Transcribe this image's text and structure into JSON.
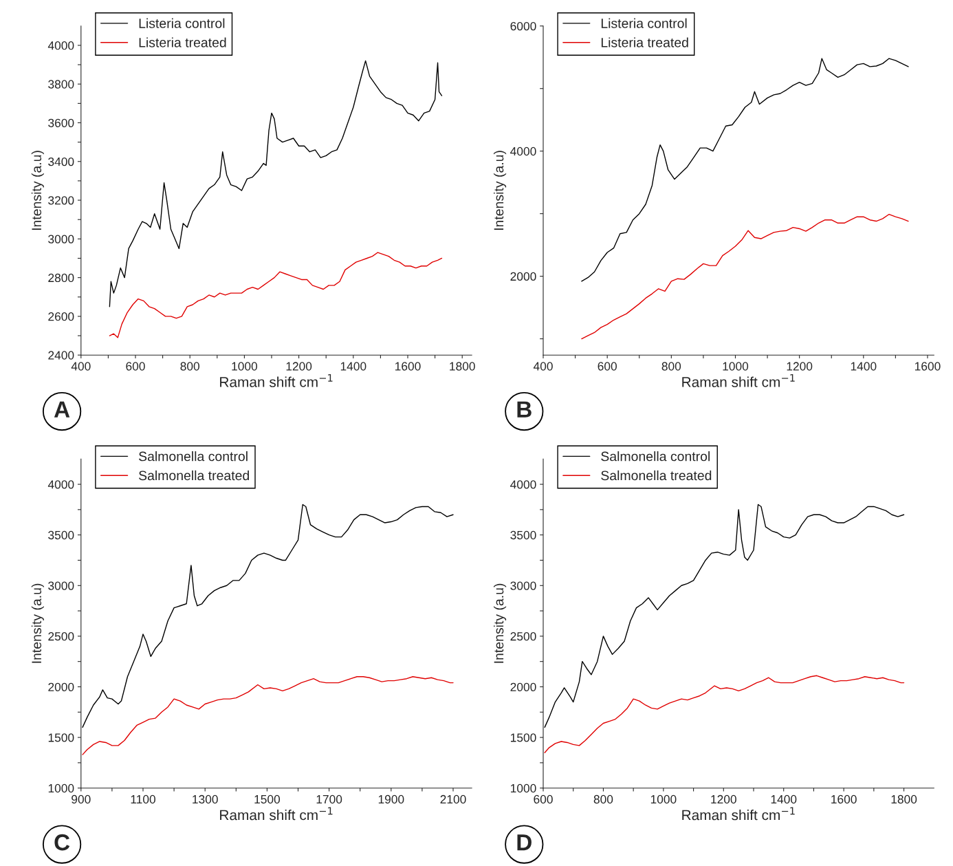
{
  "chart_data": [
    {
      "type": "line",
      "xlabel": "Raman shift cm$^{−1}$",
      "ylabel": "Intensity (a.u)",
      "annotations": [
        "A"
      ],
      "legend": "top left",
      "grid": false,
      "xlim": [
        400,
        1835
      ],
      "ylim": [
        2400,
        4100
      ],
      "xticks": [
        400,
        {
          "value": 500,
          "label": null
        },
        600,
        {
          "value": 700,
          "label": null
        },
        800,
        {
          "value": 900,
          "label": null
        },
        1000,
        {
          "value": 1100,
          "label": null
        },
        1200,
        {
          "value": 1300,
          "label": null
        },
        1400,
        {
          "value": 1500,
          "label": null
        },
        1600,
        {
          "value": 1700,
          "label": null
        },
        1800
      ],
      "yticks": [
        2400,
        {
          "value": 2500,
          "label": null
        },
        2600,
        {
          "value": 2700,
          "label": null
        },
        2800,
        {
          "value": 2900,
          "label": null
        },
        3000,
        {
          "value": 3100,
          "label": null
        },
        3200,
        {
          "value": 3300,
          "label": null
        },
        3400,
        {
          "value": 3500,
          "label": null
        },
        3600,
        {
          "value": 3700,
          "label": null
        },
        3800,
        {
          "value": 3900,
          "label": null
        },
        4000
      ],
      "series": [
        {
          "name": "Listeria control",
          "color": "#000000",
          "x": [
            505,
            510,
            520,
            530,
            545,
            560,
            575,
            590,
            610,
            625,
            640,
            655,
            670,
            690,
            705,
            715,
            730,
            745,
            760,
            775,
            790,
            810,
            830,
            850,
            870,
            890,
            910,
            920,
            935,
            950,
            970,
            990,
            1010,
            1030,
            1050,
            1070,
            1080,
            1090,
            1100,
            1110,
            1120,
            1140,
            1160,
            1180,
            1200,
            1220,
            1240,
            1260,
            1280,
            1300,
            1320,
            1340,
            1360,
            1380,
            1400,
            1420,
            1435,
            1445,
            1460,
            1480,
            1500,
            1520,
            1540,
            1560,
            1580,
            1600,
            1620,
            1640,
            1660,
            1680,
            1700,
            1710,
            1715,
            1725
          ],
          "values": [
            2650,
            2780,
            2720,
            2760,
            2850,
            2800,
            2950,
            2990,
            3050,
            3090,
            3080,
            3060,
            3130,
            3050,
            3290,
            3200,
            3050,
            3000,
            2950,
            3080,
            3060,
            3140,
            3180,
            3220,
            3260,
            3280,
            3320,
            3450,
            3330,
            3280,
            3270,
            3250,
            3310,
            3320,
            3350,
            3390,
            3380,
            3560,
            3650,
            3620,
            3520,
            3500,
            3510,
            3520,
            3480,
            3480,
            3450,
            3460,
            3420,
            3430,
            3450,
            3460,
            3520,
            3600,
            3680,
            3790,
            3870,
            3920,
            3840,
            3800,
            3760,
            3730,
            3720,
            3700,
            3690,
            3650,
            3640,
            3610,
            3650,
            3660,
            3720,
            3910,
            3760,
            3740
          ]
        },
        {
          "name": "Listeria treated",
          "color": "#e00000",
          "x": [
            505,
            520,
            535,
            550,
            570,
            590,
            610,
            630,
            650,
            670,
            690,
            710,
            730,
            750,
            770,
            790,
            810,
            830,
            850,
            870,
            890,
            910,
            930,
            950,
            970,
            990,
            1010,
            1030,
            1050,
            1070,
            1090,
            1110,
            1130,
            1150,
            1170,
            1190,
            1210,
            1230,
            1250,
            1270,
            1290,
            1310,
            1330,
            1350,
            1370,
            1390,
            1410,
            1430,
            1450,
            1470,
            1490,
            1510,
            1530,
            1550,
            1570,
            1590,
            1610,
            1630,
            1650,
            1670,
            1690,
            1710,
            1725
          ],
          "values": [
            2500,
            2510,
            2490,
            2560,
            2620,
            2660,
            2690,
            2680,
            2650,
            2640,
            2620,
            2600,
            2600,
            2590,
            2600,
            2650,
            2660,
            2680,
            2690,
            2710,
            2700,
            2720,
            2710,
            2720,
            2720,
            2720,
            2740,
            2750,
            2740,
            2760,
            2780,
            2800,
            2830,
            2820,
            2810,
            2800,
            2790,
            2790,
            2760,
            2750,
            2740,
            2760,
            2760,
            2780,
            2840,
            2860,
            2880,
            2890,
            2900,
            2910,
            2930,
            2920,
            2910,
            2890,
            2880,
            2860,
            2860,
            2850,
            2860,
            2860,
            2880,
            2890,
            2900
          ]
        }
      ]
    },
    {
      "type": "line",
      "xlabel": "Raman shift cm$^{−1}$",
      "ylabel": "Intensity (a.u)",
      "annotations": [
        "B"
      ],
      "legend": "top left",
      "grid": false,
      "xlim": [
        400,
        1620
      ],
      "ylim": [
        740,
        6000
      ],
      "xticks": [
        400,
        {
          "value": 500,
          "label": null
        },
        600,
        {
          "value": 700,
          "label": null
        },
        800,
        {
          "value": 900,
          "label": null
        },
        1000,
        {
          "value": 1100,
          "label": null
        },
        1200,
        {
          "value": 1300,
          "label": null
        },
        1400,
        {
          "value": 1500,
          "label": null
        },
        1600
      ],
      "yticks": [
        {
          "value": 1000,
          "label": null
        },
        2000,
        {
          "value": 3000,
          "label": null
        },
        4000,
        {
          "value": 5000,
          "label": null
        },
        6000
      ],
      "series": [
        {
          "name": "Listeria control",
          "color": "#000000",
          "x": [
            520,
            540,
            560,
            580,
            600,
            620,
            640,
            660,
            680,
            700,
            720,
            740,
            755,
            765,
            775,
            790,
            810,
            830,
            850,
            870,
            890,
            910,
            930,
            950,
            970,
            990,
            1010,
            1030,
            1050,
            1060,
            1075,
            1100,
            1120,
            1140,
            1160,
            1180,
            1200,
            1220,
            1240,
            1260,
            1270,
            1285,
            1300,
            1320,
            1340,
            1360,
            1380,
            1400,
            1420,
            1440,
            1460,
            1480,
            1500,
            1520,
            1540
          ],
          "values": [
            1920,
            1980,
            2070,
            2250,
            2380,
            2450,
            2680,
            2700,
            2900,
            3000,
            3150,
            3450,
            3900,
            4100,
            4000,
            3700,
            3550,
            3650,
            3750,
            3900,
            4050,
            4050,
            4000,
            4200,
            4400,
            4420,
            4550,
            4700,
            4780,
            4950,
            4750,
            4850,
            4900,
            4920,
            4980,
            5050,
            5100,
            5050,
            5080,
            5250,
            5480,
            5300,
            5250,
            5180,
            5220,
            5300,
            5380,
            5400,
            5350,
            5360,
            5400,
            5480,
            5450,
            5400,
            5350
          ]
        },
        {
          "name": "Listeria treated",
          "color": "#e00000",
          "x": [
            520,
            540,
            560,
            580,
            600,
            620,
            640,
            660,
            680,
            700,
            720,
            740,
            760,
            780,
            800,
            820,
            840,
            860,
            880,
            900,
            920,
            940,
            960,
            980,
            1000,
            1020,
            1040,
            1060,
            1080,
            1100,
            1120,
            1140,
            1160,
            1180,
            1200,
            1220,
            1240,
            1260,
            1280,
            1300,
            1320,
            1340,
            1360,
            1380,
            1400,
            1420,
            1440,
            1460,
            1480,
            1500,
            1520,
            1540
          ],
          "values": [
            1000,
            1050,
            1100,
            1180,
            1230,
            1300,
            1350,
            1400,
            1480,
            1560,
            1650,
            1720,
            1800,
            1760,
            1920,
            1960,
            1950,
            2030,
            2120,
            2200,
            2170,
            2170,
            2330,
            2400,
            2480,
            2580,
            2730,
            2620,
            2600,
            2650,
            2700,
            2720,
            2730,
            2780,
            2760,
            2720,
            2780,
            2850,
            2900,
            2900,
            2850,
            2850,
            2900,
            2950,
            2950,
            2900,
            2880,
            2920,
            2990,
            2950,
            2920,
            2880
          ]
        }
      ]
    },
    {
      "type": "line",
      "xlabel": "Raman shift cm$^{−1}$",
      "ylabel": "Intensity (a.u)",
      "annotations": [
        "C"
      ],
      "legend": "top left",
      "grid": false,
      "xlim": [
        900,
        2160
      ],
      "ylim": [
        1000,
        4250
      ],
      "xticks": [
        900,
        {
          "value": 1000,
          "label": null
        },
        1100,
        {
          "value": 1200,
          "label": null
        },
        1300,
        {
          "value": 1400,
          "label": null
        },
        1500,
        {
          "value": 1600,
          "label": null
        },
        1700,
        {
          "value": 1800,
          "label": null
        },
        1900,
        {
          "value": 2000,
          "label": null
        },
        2100
      ],
      "yticks": [
        1000,
        {
          "value": 1250,
          "label": null
        },
        1500,
        {
          "value": 1750,
          "label": null
        },
        2000,
        {
          "value": 2250,
          "label": null
        },
        2500,
        {
          "value": 2750,
          "label": null
        },
        3000,
        {
          "value": 3250,
          "label": null
        },
        3500,
        {
          "value": 3750,
          "label": null
        },
        4000
      ],
      "series": [
        {
          "name": "Salmonella control",
          "color": "#000000",
          "x": [
            905,
            920,
            940,
            960,
            970,
            985,
            1000,
            1020,
            1030,
            1050,
            1070,
            1090,
            1100,
            1110,
            1125,
            1140,
            1160,
            1180,
            1200,
            1220,
            1240,
            1255,
            1265,
            1275,
            1290,
            1310,
            1330,
            1350,
            1370,
            1390,
            1410,
            1430,
            1450,
            1470,
            1490,
            1510,
            1530,
            1550,
            1560,
            1580,
            1600,
            1615,
            1625,
            1640,
            1660,
            1680,
            1700,
            1720,
            1740,
            1760,
            1780,
            1800,
            1820,
            1840,
            1860,
            1880,
            1900,
            1920,
            1940,
            1960,
            1980,
            2000,
            2020,
            2040,
            2060,
            2080,
            2100
          ],
          "values": [
            1600,
            1700,
            1820,
            1900,
            1970,
            1890,
            1880,
            1830,
            1860,
            2100,
            2250,
            2400,
            2520,
            2450,
            2300,
            2380,
            2450,
            2650,
            2780,
            2800,
            2820,
            3200,
            2900,
            2800,
            2820,
            2900,
            2950,
            2980,
            3000,
            3050,
            3050,
            3120,
            3250,
            3300,
            3320,
            3300,
            3270,
            3250,
            3250,
            3350,
            3450,
            3800,
            3780,
            3600,
            3560,
            3530,
            3500,
            3480,
            3480,
            3550,
            3650,
            3700,
            3700,
            3680,
            3650,
            3620,
            3630,
            3650,
            3700,
            3740,
            3770,
            3780,
            3780,
            3730,
            3720,
            3680,
            3700
          ]
        },
        {
          "name": "Salmonella treated",
          "color": "#e00000",
          "x": [
            905,
            920,
            940,
            960,
            980,
            1000,
            1020,
            1040,
            1060,
            1080,
            1100,
            1120,
            1140,
            1160,
            1180,
            1200,
            1220,
            1240,
            1260,
            1280,
            1300,
            1320,
            1340,
            1360,
            1380,
            1400,
            1420,
            1440,
            1470,
            1490,
            1510,
            1530,
            1550,
            1570,
            1590,
            1610,
            1630,
            1650,
            1670,
            1690,
            1710,
            1730,
            1750,
            1770,
            1790,
            1810,
            1830,
            1850,
            1870,
            1890,
            1910,
            1930,
            1950,
            1970,
            1990,
            2010,
            2030,
            2050,
            2070,
            2090,
            2100
          ],
          "values": [
            1330,
            1380,
            1430,
            1460,
            1450,
            1420,
            1420,
            1470,
            1550,
            1620,
            1650,
            1680,
            1690,
            1750,
            1800,
            1880,
            1860,
            1820,
            1800,
            1780,
            1830,
            1850,
            1870,
            1880,
            1880,
            1890,
            1920,
            1950,
            2020,
            1980,
            1990,
            1980,
            1960,
            1980,
            2010,
            2040,
            2060,
            2080,
            2050,
            2040,
            2040,
            2040,
            2060,
            2080,
            2100,
            2100,
            2090,
            2070,
            2050,
            2060,
            2060,
            2070,
            2080,
            2100,
            2090,
            2080,
            2090,
            2070,
            2060,
            2040,
            2040
          ]
        }
      ]
    },
    {
      "type": "line",
      "xlabel": "Raman shift cm$^{−1}$",
      "ylabel": "Intensity (a.u)",
      "annotations": [
        "D"
      ],
      "legend": "top left",
      "grid": false,
      "xlim": [
        600,
        1900
      ],
      "ylim": [
        1000,
        4250
      ],
      "xticks": [
        600,
        {
          "value": 700,
          "label": null
        },
        800,
        {
          "value": 900,
          "label": null
        },
        1000,
        {
          "value": 1100,
          "label": null
        },
        1200,
        {
          "value": 1300,
          "label": null
        },
        1400,
        {
          "value": 1500,
          "label": null
        },
        1600,
        {
          "value": 1700,
          "label": null
        },
        1800
      ],
      "yticks": [
        1000,
        {
          "value": 1250,
          "label": null
        },
        1500,
        {
          "value": 1750,
          "label": null
        },
        2000,
        {
          "value": 2250,
          "label": null
        },
        2500,
        {
          "value": 2750,
          "label": null
        },
        3000,
        {
          "value": 3250,
          "label": null
        },
        3500,
        {
          "value": 3750,
          "label": null
        },
        4000
      ],
      "series": [
        {
          "name": "Salmonella control",
          "color": "#000000",
          "x": [
            605,
            620,
            640,
            660,
            670,
            690,
            700,
            720,
            730,
            745,
            760,
            780,
            800,
            815,
            830,
            850,
            870,
            890,
            910,
            930,
            950,
            965,
            980,
            1000,
            1020,
            1040,
            1060,
            1080,
            1100,
            1120,
            1140,
            1160,
            1180,
            1200,
            1220,
            1240,
            1250,
            1260,
            1270,
            1280,
            1300,
            1315,
            1325,
            1340,
            1360,
            1380,
            1400,
            1420,
            1440,
            1460,
            1480,
            1500,
            1520,
            1540,
            1560,
            1580,
            1600,
            1620,
            1640,
            1660,
            1680,
            1700,
            1720,
            1740,
            1760,
            1780,
            1800
          ],
          "values": [
            1600,
            1700,
            1850,
            1940,
            1990,
            1900,
            1850,
            2050,
            2250,
            2180,
            2120,
            2250,
            2500,
            2400,
            2320,
            2380,
            2450,
            2650,
            2780,
            2820,
            2880,
            2820,
            2760,
            2830,
            2900,
            2950,
            3000,
            3020,
            3050,
            3150,
            3250,
            3320,
            3330,
            3310,
            3300,
            3350,
            3750,
            3450,
            3280,
            3250,
            3350,
            3800,
            3780,
            3580,
            3540,
            3520,
            3480,
            3470,
            3500,
            3600,
            3680,
            3700,
            3700,
            3680,
            3640,
            3620,
            3620,
            3650,
            3680,
            3730,
            3780,
            3780,
            3760,
            3740,
            3700,
            3680,
            3700
          ]
        },
        {
          "name": "Salmonella treated",
          "color": "#e00000",
          "x": [
            605,
            620,
            640,
            660,
            680,
            700,
            720,
            740,
            760,
            780,
            800,
            820,
            840,
            860,
            880,
            900,
            920,
            940,
            960,
            980,
            1000,
            1020,
            1040,
            1060,
            1080,
            1100,
            1120,
            1140,
            1170,
            1190,
            1210,
            1230,
            1250,
            1270,
            1290,
            1310,
            1330,
            1350,
            1370,
            1390,
            1410,
            1430,
            1450,
            1470,
            1490,
            1510,
            1530,
            1550,
            1570,
            1590,
            1610,
            1630,
            1650,
            1670,
            1690,
            1710,
            1730,
            1750,
            1770,
            1790,
            1800
          ],
          "values": [
            1350,
            1400,
            1440,
            1460,
            1450,
            1430,
            1420,
            1470,
            1530,
            1590,
            1640,
            1660,
            1680,
            1730,
            1790,
            1880,
            1860,
            1820,
            1790,
            1780,
            1810,
            1840,
            1860,
            1880,
            1870,
            1890,
            1910,
            1940,
            2010,
            1980,
            1990,
            1980,
            1960,
            1980,
            2010,
            2040,
            2060,
            2090,
            2050,
            2040,
            2040,
            2040,
            2060,
            2080,
            2100,
            2110,
            2090,
            2070,
            2050,
            2060,
            2060,
            2070,
            2080,
            2100,
            2090,
            2080,
            2090,
            2070,
            2060,
            2040,
            2040
          ]
        }
      ]
    }
  ]
}
